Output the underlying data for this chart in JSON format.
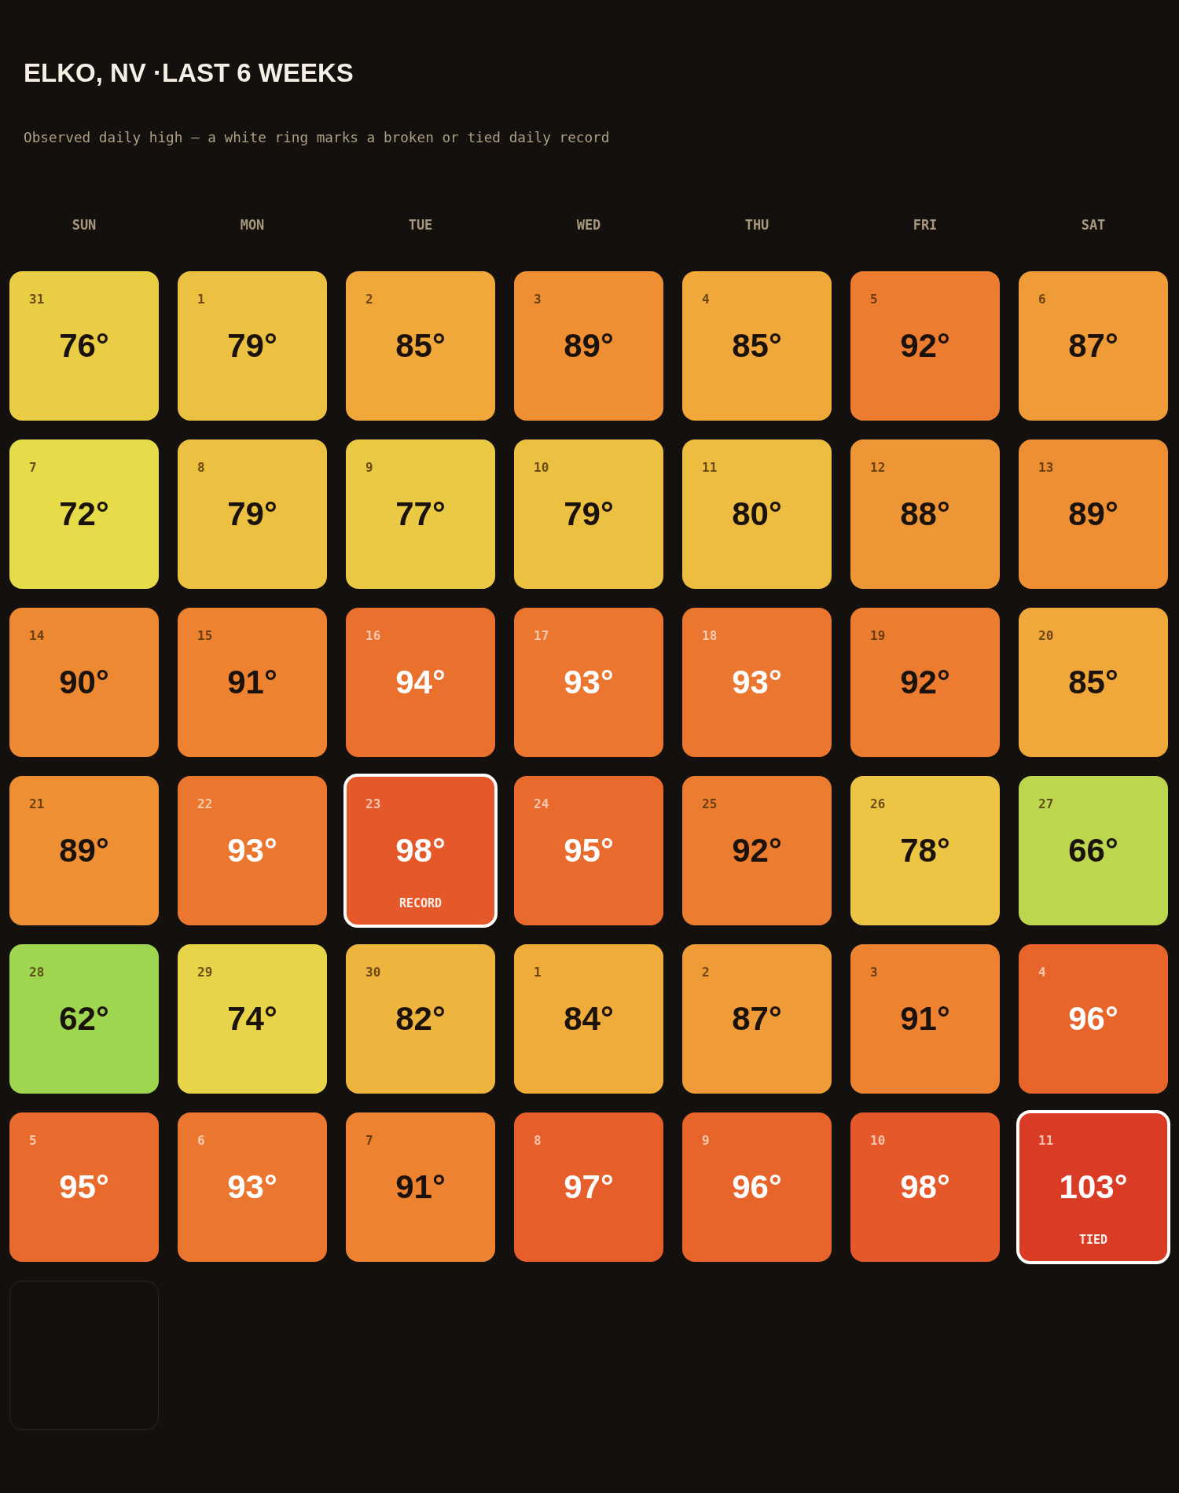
{
  "chart_data": {
    "type": "heatmap",
    "title": "ELKO, NV ·LAST 6 WEEKS",
    "subtitle": "Observed daily high — a white ring marks a broken or tied daily record",
    "categories": [
      "SUN",
      "MON",
      "TUE",
      "WED",
      "THU",
      "FRI",
      "SAT"
    ],
    "y_categories": [
      null,
      null,
      null,
      null,
      null,
      null
    ],
    "cells": [
      [
        76,
        79,
        85,
        89,
        85,
        92,
        87
      ],
      [
        72,
        79,
        77,
        79,
        80,
        88,
        89
      ],
      [
        90,
        91,
        94,
        93,
        93,
        92,
        85
      ],
      [
        89,
        93,
        98,
        95,
        92,
        78,
        66
      ],
      [
        62,
        74,
        82,
        84,
        87,
        91,
        96
      ],
      [
        95,
        93,
        91,
        97,
        96,
        98,
        103
      ]
    ],
    "cell_labels": [
      [
        "76°",
        "79°",
        "85°",
        "89°",
        "85°",
        "92°",
        "87°"
      ],
      [
        "72°",
        "79°",
        "77°",
        "79°",
        "80°",
        "88°",
        "89°"
      ],
      [
        "90°",
        "91°",
        "94°",
        "93°",
        "93°",
        "92°",
        "85°"
      ],
      [
        "89°",
        "93°",
        "98°\nRECORD",
        "95°",
        "92°",
        "78°",
        "66°"
      ],
      [
        "62°",
        "74°",
        "82°",
        "84°",
        "87°",
        "91°",
        "96°"
      ],
      [
        "95°",
        "93°",
        "91°",
        "97°",
        "96°",
        "98°",
        "103°\nTIED"
      ]
    ],
    "annotations": [
      "31",
      "1",
      "2",
      "3",
      "4",
      "5",
      "6",
      "7",
      "8",
      "9",
      "10",
      "11",
      "12",
      "13",
      "14",
      "15",
      "16",
      "17",
      "18",
      "19",
      "20",
      "21",
      "22",
      "23",
      "24",
      "25",
      "26",
      "27",
      "28",
      "29",
      "30",
      "1",
      "2",
      "3",
      "4",
      "5",
      "6",
      "7",
      "8",
      "9",
      "10",
      "11"
    ]
  }
}
